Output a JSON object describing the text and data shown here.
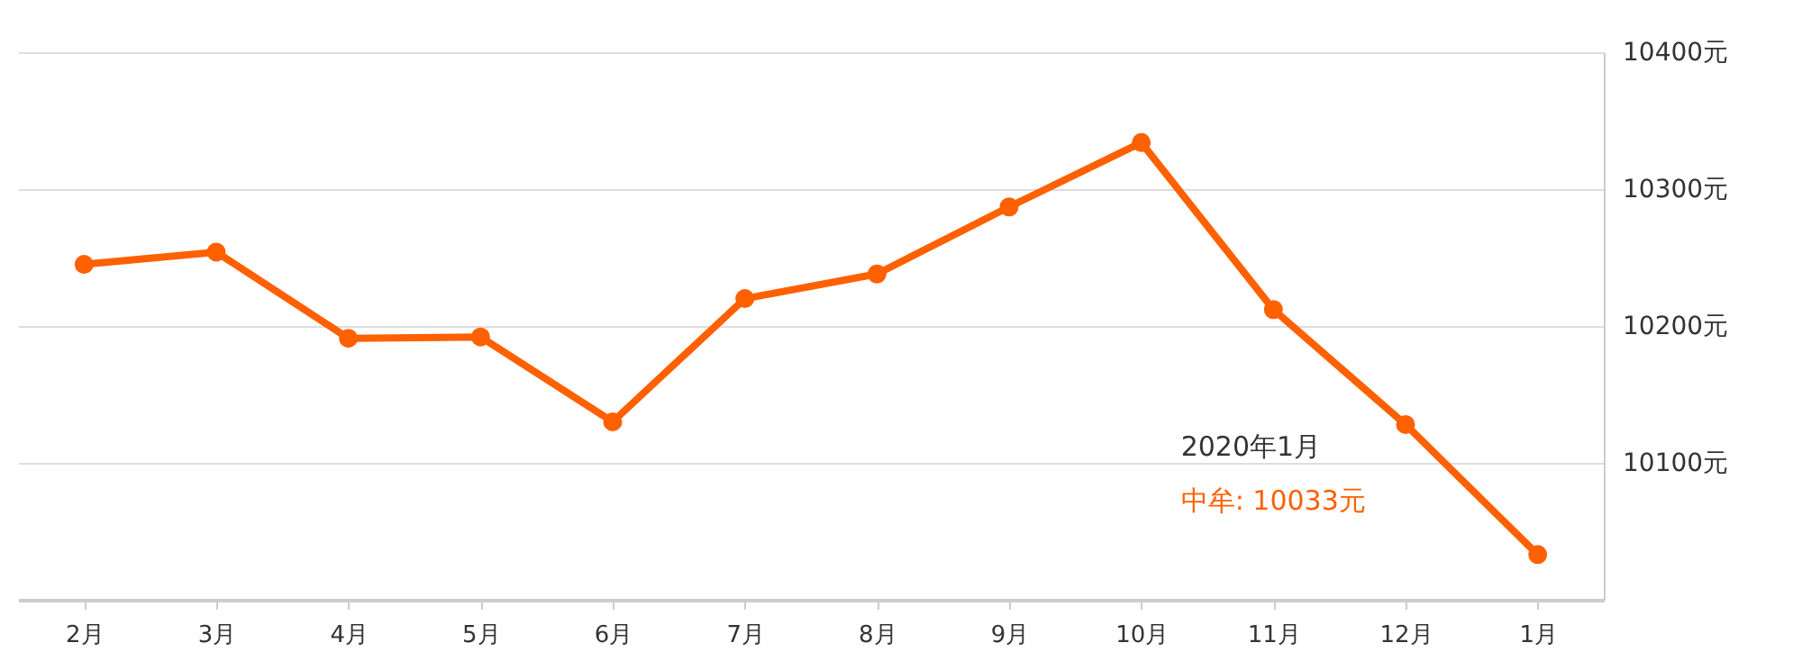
{
  "chart_data": {
    "type": "line",
    "categories": [
      "2月",
      "3月",
      "4月",
      "5月",
      "6月",
      "7月",
      "8月",
      "9月",
      "10月",
      "11月",
      "12月",
      "1月"
    ],
    "series": [
      {
        "color": "#ff6000",
        "values": [
          10245,
          10254,
          10191,
          10192,
          10130,
          10220,
          10238,
          10287,
          10334,
          10212,
          10128,
          10033
        ]
      }
    ],
    "ylim": [
      10000,
      10400
    ],
    "yticks": [
      {
        "value": 10100,
        "label": "10100元"
      },
      {
        "value": 10200,
        "label": "10200元"
      },
      {
        "value": 10300,
        "label": "10300元"
      },
      {
        "value": 10400,
        "label": "10400元"
      }
    ],
    "grid": "y",
    "marker": "circle",
    "line_style": "solid",
    "annotations": [
      "2020年1月",
      "中牟:  10033元"
    ]
  }
}
